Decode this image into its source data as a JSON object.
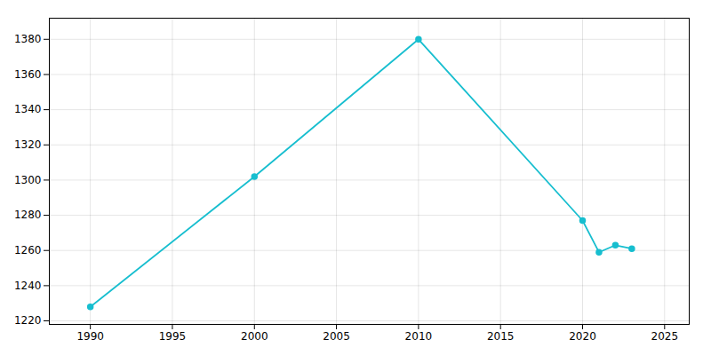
{
  "chart_data": {
    "type": "line",
    "x": [
      1990,
      2000,
      2010,
      2020,
      2021,
      2022,
      2023
    ],
    "values": [
      1228,
      1302,
      1380,
      1277,
      1259,
      1263,
      1261
    ],
    "color": "#17becf",
    "marker": "o",
    "xlim": [
      1987.5,
      2026.5
    ],
    "ylim": [
      1218,
      1392
    ],
    "xticks": [
      1990,
      1995,
      2000,
      2005,
      2010,
      2015,
      2020,
      2025
    ],
    "yticks": [
      1220,
      1240,
      1260,
      1280,
      1300,
      1320,
      1340,
      1360,
      1380
    ],
    "grid": true
  }
}
